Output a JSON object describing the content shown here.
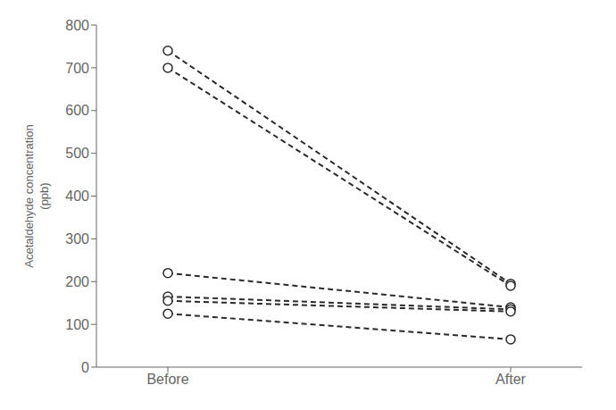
{
  "chart_data": {
    "type": "line",
    "categories": [
      "Before",
      "After"
    ],
    "series": [
      {
        "values": [
          740,
          195
        ]
      },
      {
        "values": [
          700,
          190
        ]
      },
      {
        "values": [
          220,
          140
        ]
      },
      {
        "values": [
          165,
          135
        ]
      },
      {
        "values": [
          155,
          130
        ]
      },
      {
        "values": [
          125,
          65
        ]
      }
    ],
    "color": "#2b2b2b",
    "line_style": "dashed",
    "marker": "circle",
    "ylabel": "Acetaldehyde concentration\n(ppb)",
    "ylim": [
      0,
      800
    ],
    "yticks": [
      0,
      100,
      200,
      300,
      400,
      500,
      600,
      700,
      800
    ],
    "grid": false
  }
}
